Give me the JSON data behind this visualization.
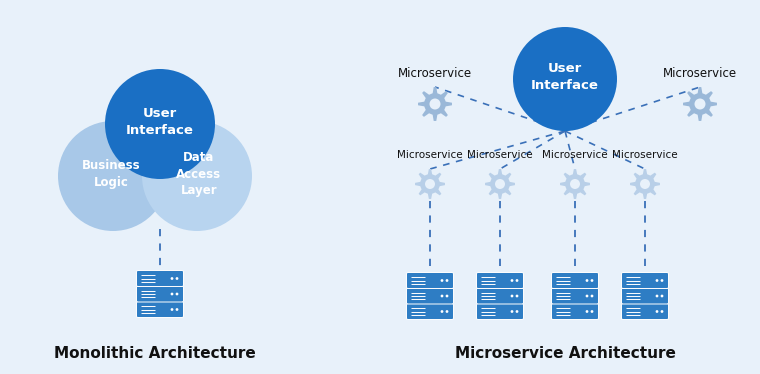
{
  "bg_color": "#e8f1fa",
  "dark_blue": "#1a6fc4",
  "light_blue": "#a8c8e8",
  "very_light_blue": "#b8d4ef",
  "server_blue": "#2e7dc4",
  "gear_color_top": "#9ab8d8",
  "gear_color_bot": "#b8cfe8",
  "line_color": "#3a70b8",
  "text_dark": "#111111",
  "text_white": "#ffffff",
  "mono_label": "Monolithic Architecture",
  "micro_label": "Microservice Architecture",
  "ui_text": "User\nInterface",
  "bl_text": "Business\nLogic",
  "dal_text": "Data\nAccess\nLayer",
  "microservice_text": "Microservice",
  "figsize": [
    7.6,
    3.74
  ],
  "dpi": 100
}
